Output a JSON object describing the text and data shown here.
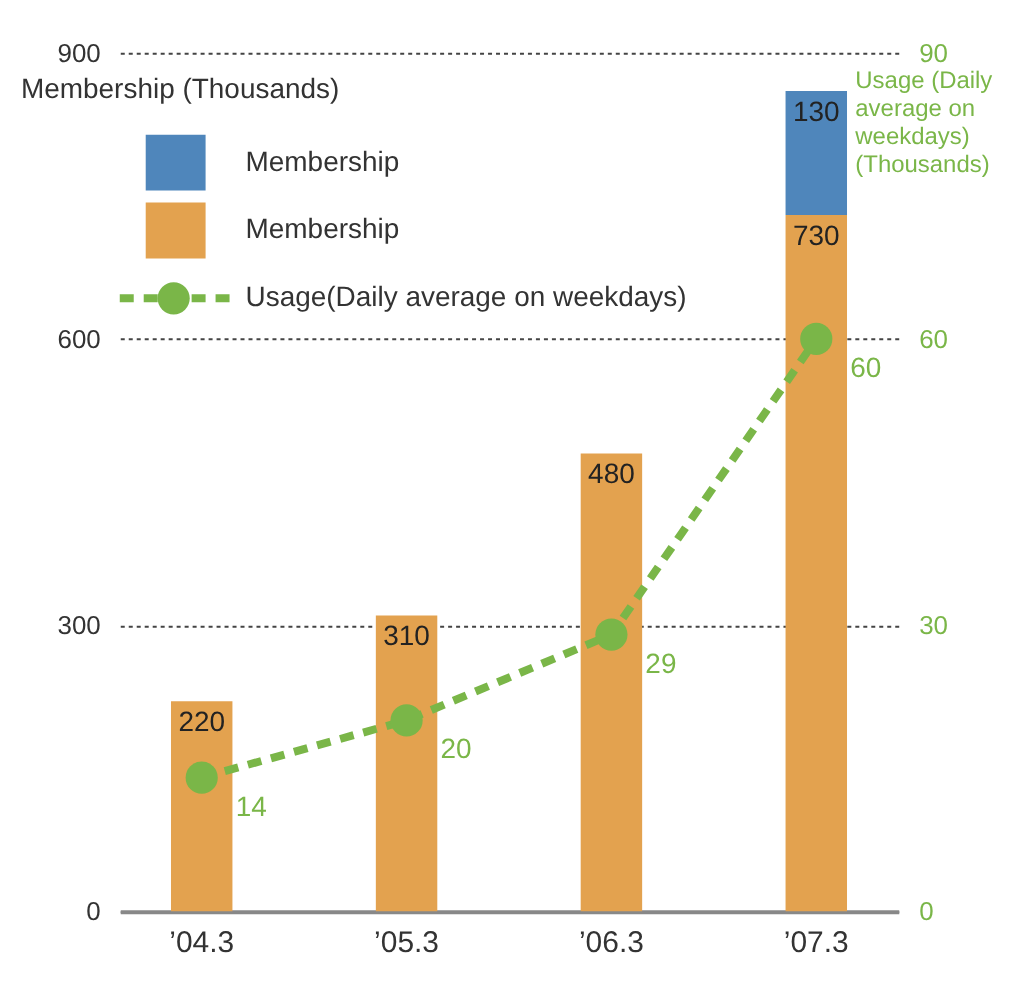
{
  "chart_data": {
    "type": "bar",
    "ylabel": "Membership (Thousands)",
    "y2label": "Usage (Daily average on weekdays) (Thousands)",
    "categories": [
      "’04.3",
      "’05.3",
      "’06.3",
      "’07.3"
    ],
    "stacked": true,
    "series": [
      {
        "name": "Membership",
        "color": "#e3a24f",
        "values": [
          220,
          310,
          480,
          730
        ]
      },
      {
        "name": "Membership",
        "color": "#4f86bb",
        "values": [
          null,
          null,
          null,
          130
        ]
      },
      {
        "name": "Usage(Daily average on weekdays)",
        "type": "line",
        "axis": "y2",
        "color": "#7ab648",
        "values": [
          14,
          20,
          29,
          60
        ],
        "marker": "circle",
        "line_style": "dashed"
      }
    ],
    "ylim": [
      0,
      900
    ],
    "yticks": [
      0,
      300,
      600,
      900
    ],
    "y2lim": [
      0,
      90
    ],
    "y2ticks": [
      0,
      30,
      60,
      90
    ],
    "grid": "y",
    "legend": "top left",
    "data_labels": true
  }
}
